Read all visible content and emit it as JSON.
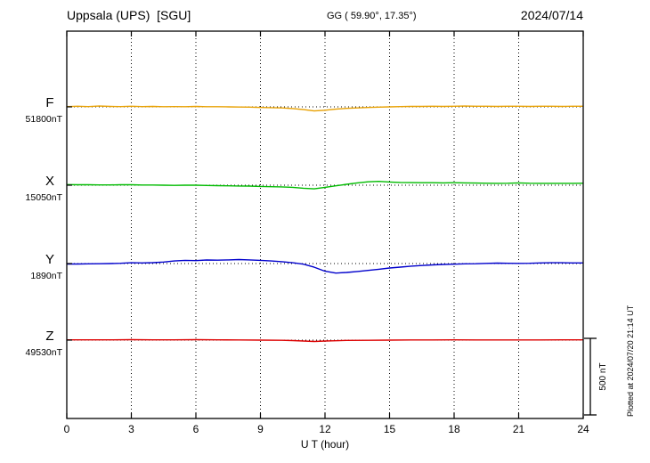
{
  "header": {
    "station": "Uppsala (UPS)  [SGU]",
    "coords": "GG ( 59.90°, 17.35°)",
    "date": "2024/07/14"
  },
  "axes": {
    "xlabel": "U T (hour)",
    "xlim": [
      0,
      24
    ],
    "xticks": [
      0,
      3,
      6,
      9,
      12,
      15,
      18,
      21,
      24
    ]
  },
  "scale_bar": {
    "label": "500 nT",
    "nT": 500
  },
  "side_note": "Plotted at 2024/07/20 21:14 UT",
  "chart_data": {
    "type": "line",
    "title": "Uppsala (UPS) [SGU] magnetogram 2024/07/14",
    "xlabel": "U T (hour)",
    "xlim": [
      0,
      24
    ],
    "xticks": [
      0,
      3,
      6,
      9,
      12,
      15,
      18,
      21,
      24
    ],
    "grid": "dotted vertical every 3 h, dotted horizontal baseline per component",
    "legend_position": "left margin, one colored label per trace",
    "units": {
      "x": "UT hour",
      "y": "nT deviation from component baseline"
    },
    "series": [
      {
        "name": "F",
        "baseline_label": "51800nT",
        "baseline_nT": 51800,
        "color": "#e8a000",
        "points": [
          [
            0,
            2
          ],
          [
            0.5,
            4
          ],
          [
            1,
            2
          ],
          [
            1.5,
            5
          ],
          [
            2,
            3
          ],
          [
            2.5,
            2
          ],
          [
            3,
            4
          ],
          [
            3.5,
            2
          ],
          [
            4,
            3
          ],
          [
            4.5,
            1
          ],
          [
            5,
            2
          ],
          [
            5.5,
            1
          ],
          [
            6,
            3
          ],
          [
            6.5,
            1
          ],
          [
            7,
            1
          ],
          [
            7.5,
            0
          ],
          [
            8,
            -1
          ],
          [
            8.5,
            -2
          ],
          [
            9,
            -4
          ],
          [
            9.5,
            -5
          ],
          [
            10,
            -7
          ],
          [
            10.5,
            -11
          ],
          [
            11,
            -18
          ],
          [
            11.5,
            -27
          ],
          [
            12,
            -22
          ],
          [
            12.5,
            -15
          ],
          [
            13,
            -10
          ],
          [
            13.5,
            -7
          ],
          [
            14,
            -4
          ],
          [
            14.5,
            -2
          ],
          [
            15,
            0
          ],
          [
            15.5,
            2
          ],
          [
            16,
            3
          ],
          [
            16.5,
            3
          ],
          [
            17,
            4
          ],
          [
            17.5,
            3
          ],
          [
            18,
            4
          ],
          [
            18.5,
            5
          ],
          [
            19,
            4
          ],
          [
            19.5,
            4
          ],
          [
            20,
            3
          ],
          [
            20.5,
            4
          ],
          [
            21,
            4
          ],
          [
            21.5,
            3
          ],
          [
            22,
            4
          ],
          [
            22.5,
            4
          ],
          [
            23,
            3
          ],
          [
            23.5,
            4
          ],
          [
            24,
            4
          ]
        ]
      },
      {
        "name": "X",
        "baseline_label": "15050nT",
        "baseline_nT": 15050,
        "color": "#00bb00",
        "points": [
          [
            0,
            4
          ],
          [
            0.5,
            3
          ],
          [
            1,
            3
          ],
          [
            1.5,
            2
          ],
          [
            2,
            2
          ],
          [
            2.5,
            3
          ],
          [
            3,
            3
          ],
          [
            3.5,
            1
          ],
          [
            4,
            1
          ],
          [
            4.5,
            0
          ],
          [
            5,
            -1
          ],
          [
            5.5,
            0
          ],
          [
            6,
            0
          ],
          [
            6.5,
            -2
          ],
          [
            7,
            -3
          ],
          [
            7.5,
            -4
          ],
          [
            8,
            -5
          ],
          [
            8.5,
            -6
          ],
          [
            9,
            -8
          ],
          [
            9.5,
            -10
          ],
          [
            10,
            -11
          ],
          [
            10.5,
            -14
          ],
          [
            11,
            -20
          ],
          [
            11.5,
            -24
          ],
          [
            12,
            -14
          ],
          [
            12.5,
            -4
          ],
          [
            13,
            6
          ],
          [
            13.5,
            15
          ],
          [
            14,
            22
          ],
          [
            14.5,
            25
          ],
          [
            15,
            21
          ],
          [
            15.5,
            18
          ],
          [
            16,
            17
          ],
          [
            16.5,
            16
          ],
          [
            17,
            16
          ],
          [
            17.5,
            15
          ],
          [
            18,
            16
          ],
          [
            18.5,
            15
          ],
          [
            19,
            14
          ],
          [
            19.5,
            13
          ],
          [
            20,
            12
          ],
          [
            20.5,
            13
          ],
          [
            21,
            15
          ],
          [
            21.5,
            13
          ],
          [
            22,
            12
          ],
          [
            22.5,
            12
          ],
          [
            23,
            12
          ],
          [
            23.5,
            12
          ],
          [
            24,
            13
          ]
        ]
      },
      {
        "name": "Y",
        "baseline_label": "1890nT",
        "baseline_nT": 1890,
        "color": "#0000cc",
        "points": [
          [
            0,
            -3
          ],
          [
            0.5,
            -3
          ],
          [
            1,
            -2
          ],
          [
            1.5,
            -1
          ],
          [
            2,
            0
          ],
          [
            2.5,
            2
          ],
          [
            3,
            5
          ],
          [
            3.5,
            4
          ],
          [
            4,
            6
          ],
          [
            4.5,
            10
          ],
          [
            5,
            17
          ],
          [
            5.5,
            21
          ],
          [
            6,
            19
          ],
          [
            6.5,
            23
          ],
          [
            7,
            22
          ],
          [
            7.5,
            24
          ],
          [
            8,
            26
          ],
          [
            8.5,
            24
          ],
          [
            9,
            21
          ],
          [
            9.5,
            17
          ],
          [
            10,
            12
          ],
          [
            10.5,
            5
          ],
          [
            11,
            -4
          ],
          [
            11.5,
            -24
          ],
          [
            12,
            -50
          ],
          [
            12.5,
            -62
          ],
          [
            13,
            -58
          ],
          [
            13.5,
            -52
          ],
          [
            14,
            -45
          ],
          [
            14.5,
            -37
          ],
          [
            15,
            -29
          ],
          [
            15.5,
            -23
          ],
          [
            16,
            -17
          ],
          [
            16.5,
            -13
          ],
          [
            17,
            -9
          ],
          [
            17.5,
            -6
          ],
          [
            18,
            -4
          ],
          [
            18.5,
            -2
          ],
          [
            19,
            -1
          ],
          [
            19.5,
            1
          ],
          [
            20,
            3
          ],
          [
            20.5,
            2
          ],
          [
            21,
            1
          ],
          [
            21.5,
            2
          ],
          [
            22,
            4
          ],
          [
            22.5,
            5
          ],
          [
            23,
            5
          ],
          [
            23.5,
            4
          ],
          [
            24,
            4
          ]
        ]
      },
      {
        "name": "Z",
        "baseline_label": "49530nT",
        "baseline_nT": 49530,
        "color": "#dd0000",
        "points": [
          [
            0,
            2
          ],
          [
            1,
            2
          ],
          [
            2,
            2
          ],
          [
            3,
            3
          ],
          [
            4,
            2
          ],
          [
            5,
            2
          ],
          [
            6,
            3
          ],
          [
            7,
            2
          ],
          [
            8,
            1
          ],
          [
            9,
            0
          ],
          [
            10,
            -1
          ],
          [
            10.5,
            -3
          ],
          [
            11,
            -6
          ],
          [
            11.5,
            -9
          ],
          [
            12,
            -6
          ],
          [
            12.5,
            -4
          ],
          [
            13,
            -2
          ],
          [
            14,
            -1
          ],
          [
            15,
            0
          ],
          [
            16,
            1
          ],
          [
            17,
            1
          ],
          [
            18,
            2
          ],
          [
            19,
            1
          ],
          [
            20,
            1
          ],
          [
            21,
            1
          ],
          [
            22,
            1
          ],
          [
            23,
            2
          ],
          [
            24,
            2
          ]
        ]
      }
    ]
  }
}
